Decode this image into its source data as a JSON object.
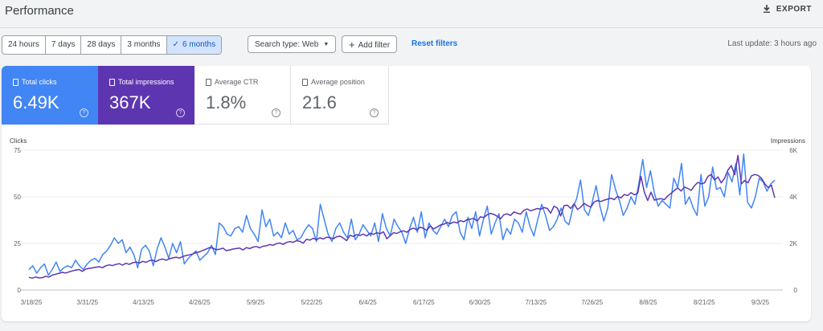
{
  "header": {
    "title": "Performance",
    "export_label": "EXPORT",
    "export_icon": "download-icon"
  },
  "filters": {
    "ranges": [
      "24 hours",
      "7 days",
      "28 days",
      "3 months",
      "6 months"
    ],
    "selected_range": "6 months",
    "search_type_label": "Search type: Web",
    "add_filter_label": "Add filter",
    "reset_label": "Reset filters",
    "last_update": "Last update: 3 hours ago"
  },
  "metrics": {
    "clicks": {
      "label": "Total clicks",
      "value": "6.49K",
      "color": "#4285f4"
    },
    "impressions": {
      "label": "Total impressions",
      "value": "367K",
      "color": "#5e35b1"
    },
    "ctr": {
      "label": "Average CTR",
      "value": "1.8%"
    },
    "position": {
      "label": "Average position",
      "value": "21.6"
    }
  },
  "chart_data": {
    "type": "line",
    "left_axis": {
      "title": "Clicks",
      "ticks": [
        0,
        25,
        50,
        75
      ],
      "range": [
        0,
        75
      ]
    },
    "right_axis": {
      "title": "Impressions",
      "ticks": [
        "0",
        "2K",
        "4K",
        "6K"
      ],
      "tick_values": [
        0,
        2000,
        4000,
        6000
      ],
      "range": [
        0,
        6000
      ]
    },
    "x_labels": [
      "3/18/25",
      "3/31/25",
      "4/13/25",
      "4/26/25",
      "5/9/25",
      "5/22/25",
      "6/4/25",
      "6/17/25",
      "6/30/25",
      "7/13/25",
      "7/26/25",
      "8/8/25",
      "8/21/25",
      "9/3/25"
    ],
    "series": [
      {
        "name": "Clicks",
        "axis": "left",
        "color": "#4285f4",
        "values": [
          11,
          13,
          9,
          12,
          14,
          8,
          11,
          15,
          10,
          12,
          13,
          12,
          16,
          13,
          11,
          14,
          16,
          17,
          15,
          19,
          21,
          24,
          28,
          25,
          27,
          20,
          23,
          19,
          12,
          22,
          24,
          21,
          13,
          22,
          28,
          23,
          17,
          25,
          20,
          26,
          14,
          17,
          19,
          21,
          16,
          18,
          20,
          24,
          19,
          36,
          34,
          30,
          29,
          33,
          34,
          31,
          40,
          33,
          30,
          26,
          43,
          34,
          38,
          29,
          31,
          28,
          36,
          30,
          32,
          27,
          28,
          32,
          35,
          33,
          26,
          46,
          38,
          30,
          26,
          33,
          36,
          31,
          28,
          38,
          27,
          30,
          35,
          32,
          29,
          36,
          26,
          41,
          33,
          29,
          38,
          34,
          31,
          25,
          33,
          39,
          31,
          42,
          28,
          36,
          32,
          30,
          34,
          38,
          34,
          40,
          42,
          31,
          27,
          39,
          33,
          42,
          29,
          38,
          45,
          30,
          36,
          41,
          27,
          33,
          30,
          38,
          36,
          31,
          42,
          34,
          29,
          38,
          46,
          40,
          32,
          34,
          38,
          44,
          37,
          35,
          44,
          49,
          59,
          43,
          40,
          47,
          56,
          45,
          37,
          44,
          62,
          54,
          48,
          40,
          44,
          50,
          46,
          57,
          70,
          55,
          64,
          52,
          45,
          48,
          46,
          44,
          60,
          55,
          68,
          46,
          50,
          44,
          40,
          62,
          45,
          50,
          66,
          54,
          55,
          50,
          63,
          58,
          68,
          51,
          73,
          47,
          44,
          50,
          60,
          58,
          53,
          57,
          59
        ]
      },
      {
        "name": "Impressions",
        "axis": "right",
        "color": "#5e35b1",
        "values": [
          540,
          510,
          560,
          520,
          530,
          590,
          560,
          640,
          680,
          720,
          760,
          730,
          780,
          820,
          860,
          880,
          800,
          900,
          930,
          950,
          980,
          1000,
          960,
          1040,
          1080,
          1050,
          1100,
          1130,
          1070,
          1150,
          1100,
          1170,
          1200,
          1160,
          1230,
          1190,
          1260,
          1280,
          1220,
          1300,
          1330,
          1280,
          1340,
          1380,
          1410,
          1370,
          1440,
          1480,
          1510,
          1550,
          1600,
          1640,
          1700,
          1760,
          1820,
          1800,
          1730,
          1750,
          1800,
          1690,
          1720,
          1760,
          1780,
          1800,
          1720,
          1820,
          1780,
          1840,
          1870,
          1810,
          1880,
          1900,
          1950,
          1920,
          1990,
          2020,
          1960,
          2040,
          2080,
          2050,
          2120,
          2090,
          2010,
          2180,
          2140,
          2220,
          2160,
          2240,
          2190,
          2270,
          2250,
          2200,
          2290,
          2310,
          2230,
          2120,
          2350,
          2300,
          2380,
          2340,
          2400,
          2320,
          2440,
          2390,
          2460,
          2420,
          2500,
          2200,
          2330,
          2460,
          2430,
          2500,
          2540,
          2480,
          2600,
          2660,
          2580,
          2700,
          2640,
          2560,
          2760,
          2620,
          2700,
          2790,
          2820,
          2900,
          2850,
          2920,
          2880,
          2980,
          2930,
          3020,
          3040,
          3080,
          2960,
          3140,
          3110,
          3230,
          3290,
          3250,
          3170,
          3060,
          3230,
          3270,
          3200,
          3350,
          3300,
          3260,
          3420,
          3480,
          3400,
          3450,
          3500,
          3470,
          3540,
          3500,
          3300,
          3600,
          3520,
          3180,
          3620,
          3640,
          3500,
          3700,
          3460,
          3560,
          3720,
          3620,
          3560,
          3780,
          3840,
          3800,
          3860,
          3900,
          3940,
          3880,
          4020,
          3950,
          4100,
          4060,
          4180,
          4090,
          4150,
          4880,
          4200,
          3840,
          4200,
          3860,
          3900,
          3920,
          3880,
          4040,
          4150,
          4280,
          4380,
          4250,
          4420,
          4360,
          4280,
          4480,
          4620,
          4560,
          4600,
          4880,
          4960,
          4720,
          4850,
          4600,
          4800,
          5150,
          5340,
          4950,
          5780,
          4560,
          4700,
          4600,
          4900,
          4960,
          4920,
          4800,
          4560,
          4400,
          4500,
          3960
        ]
      }
    ]
  }
}
